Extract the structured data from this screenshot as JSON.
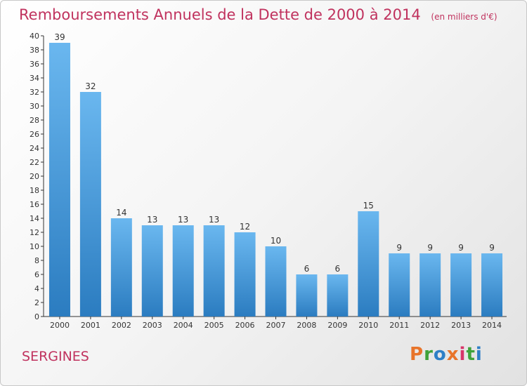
{
  "header": {
    "title": "Remboursements Annuels de la Dette de 2000 à 2014",
    "unit": "(en milliers d'€)"
  },
  "footer": {
    "place": "SERGINES",
    "logo_text": "Proxiti"
  },
  "colors": {
    "title": "#c0325e",
    "bar_top": "#6ab7ef",
    "bar_bottom": "#2b7cc0",
    "logo_letters": [
      "#e8742a",
      "#3fa23a",
      "#2e7fc6",
      "#e8742a",
      "#d8356a",
      "#3fa23a",
      "#2e7fc6"
    ]
  },
  "chart_data": {
    "type": "bar",
    "categories": [
      "2000",
      "2001",
      "2002",
      "2003",
      "2004",
      "2005",
      "2006",
      "2007",
      "2008",
      "2009",
      "2010",
      "2011",
      "2012",
      "2013",
      "2014"
    ],
    "values": [
      39,
      32,
      14,
      13,
      13,
      13,
      12,
      10,
      6,
      6,
      15,
      9,
      9,
      9,
      9
    ],
    "title": "Remboursements Annuels de la Dette de 2000 à 2014",
    "ylim": [
      0,
      40
    ],
    "ytick_step": 2,
    "grid": false,
    "data_labels": true
  }
}
